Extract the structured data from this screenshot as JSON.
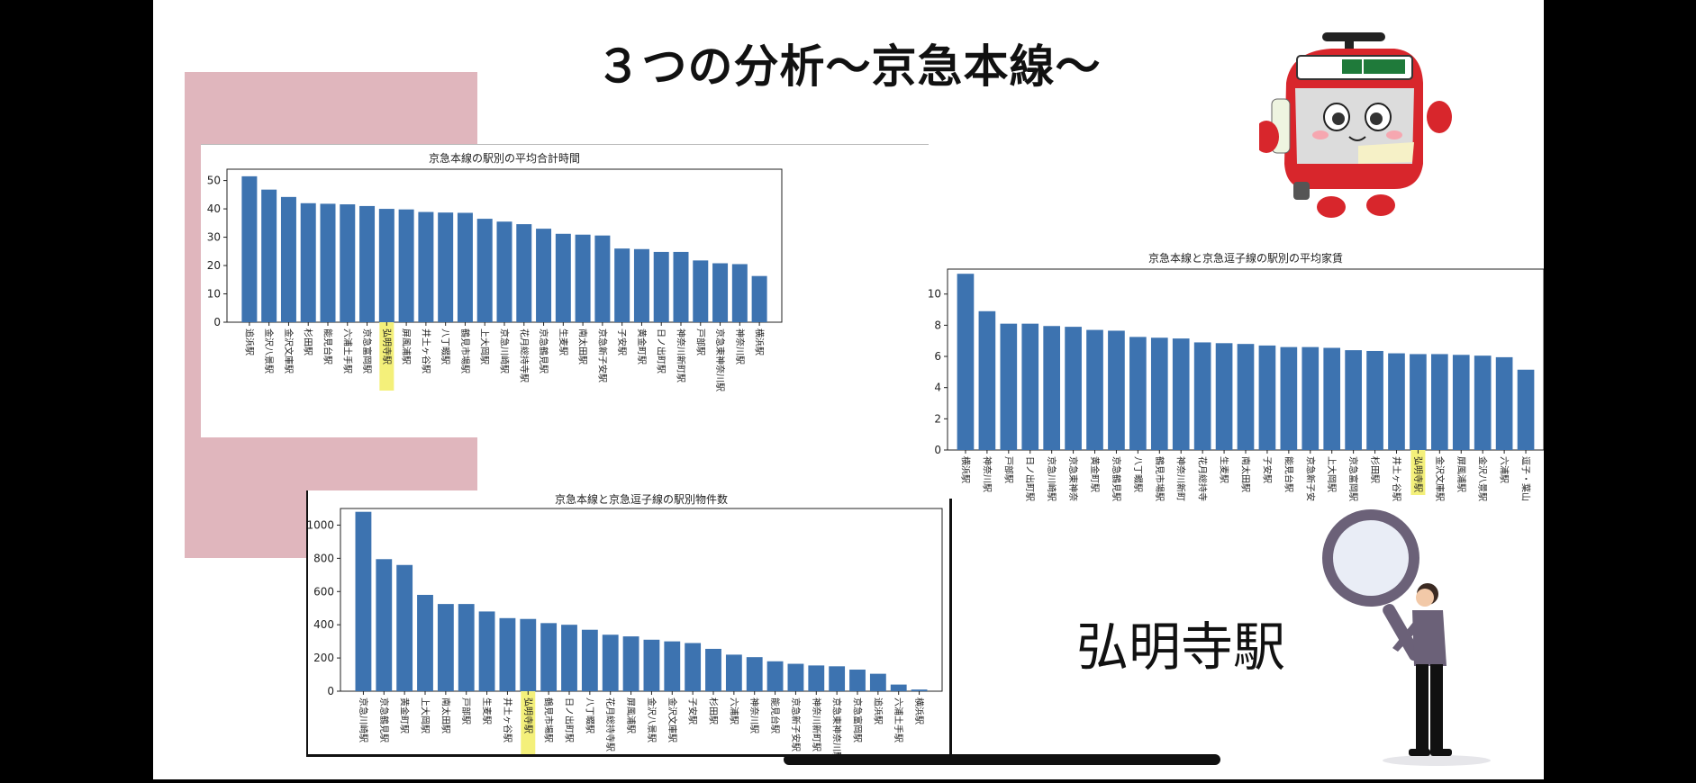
{
  "slide": {
    "title": "３つの分析～京急本線～",
    "station_label": "弘明寺駅",
    "highlight_station": "弘明寺駅",
    "colors": {
      "bar": "#3d73b0",
      "highlight": "#f4f07a",
      "accent_panel": "#e0b6bd"
    },
    "icons": [
      "train-mascot-icon",
      "magnifier-person-icon"
    ]
  },
  "chart_data": [
    {
      "type": "bar",
      "title": "京急本線の駅別の平均合計時間",
      "categories": [
        "追浜駅",
        "金沢八景駅",
        "金沢文庫駅",
        "杉田駅",
        "能見台駅",
        "六浦土手駅",
        "京急富岡駅",
        "弘明寺駅",
        "屏風浦駅",
        "井土ヶ谷駅",
        "八丁畷駅",
        "鶴見市場駅",
        "上大岡駅",
        "京急川崎駅",
        "花月総持寺駅",
        "京急鶴見駅",
        "生麦駅",
        "南太田駅",
        "京急新子安駅",
        "子安駅",
        "黄金町駅",
        "日ノ出町駅",
        "神奈川新町駅",
        "戸部駅",
        "京急東神奈川駅",
        "神奈川駅",
        "横浜駅"
      ],
      "values": [
        51.5,
        46.8,
        44.2,
        42,
        41.8,
        41.6,
        41,
        40,
        39.8,
        38.9,
        38.7,
        38.6,
        36.5,
        35.5,
        34.6,
        33,
        31.2,
        30.9,
        30.6,
        26,
        25.8,
        24.8,
        24.8,
        21.8,
        20.8,
        20.5,
        16.3
      ],
      "yticks": [
        0,
        10,
        20,
        30,
        40,
        50
      ],
      "ylim": [
        0,
        54
      ]
    },
    {
      "type": "bar",
      "title": "京急本線と京急逗子線の駅別の平均家賃",
      "categories": [
        "横浜駅",
        "神奈川駅",
        "戸部駅",
        "日ノ出町駅",
        "京急川崎駅",
        "京急東神奈川駅",
        "黄金町駅",
        "京急鶴見駅",
        "八丁畷駅",
        "鶴見市場駅",
        "神奈川新町駅",
        "花月総持寺駅",
        "生麦駅",
        "南太田駅",
        "子安駅",
        "能見台駅",
        "京急新子安駅",
        "上大岡駅",
        "京急富岡駅",
        "杉田駅",
        "井土ヶ谷駅",
        "弘明寺駅",
        "金沢文庫駅",
        "屏風浦駅",
        "金沢八景駅",
        "六浦駅",
        "逗子・葉山駅"
      ],
      "values": [
        11.3,
        8.9,
        8.1,
        8.1,
        7.95,
        7.9,
        7.7,
        7.65,
        7.25,
        7.2,
        7.15,
        6.9,
        6.85,
        6.8,
        6.7,
        6.6,
        6.6,
        6.55,
        6.4,
        6.35,
        6.2,
        6.15,
        6.15,
        6.1,
        6.05,
        5.95,
        5.15
      ],
      "yticks": [
        0,
        2,
        4,
        6,
        8,
        10
      ],
      "ylim": [
        0,
        11.6
      ]
    },
    {
      "type": "bar",
      "title": "京急本線と京急逗子線の駅別物件数",
      "categories": [
        "京急川崎駅",
        "京急鶴見駅",
        "黄金町駅",
        "上大岡駅",
        "南太田駅",
        "戸部駅",
        "生麦駅",
        "井土ヶ谷駅",
        "弘明寺駅",
        "鶴見市場駅",
        "日ノ出町駅",
        "八丁畷駅",
        "花月総持寺駅",
        "屏風浦駅",
        "金沢八景駅",
        "金沢文庫駅",
        "子安駅",
        "杉田駅",
        "六浦駅",
        "神奈川駅",
        "能見台駅",
        "京急新子安駅",
        "神奈川新町駅",
        "京急東神奈川駅",
        "京急富岡駅",
        "追浜駅",
        "六浦土手駅",
        "横浜駅"
      ],
      "values": [
        1080,
        795,
        760,
        580,
        525,
        525,
        480,
        440,
        435,
        410,
        400,
        370,
        340,
        330,
        310,
        300,
        290,
        255,
        220,
        205,
        180,
        165,
        155,
        150,
        130,
        105,
        40,
        10
      ],
      "yticks": [
        0,
        200,
        400,
        600,
        800,
        1000
      ],
      "ylim": [
        0,
        1100
      ]
    }
  ]
}
